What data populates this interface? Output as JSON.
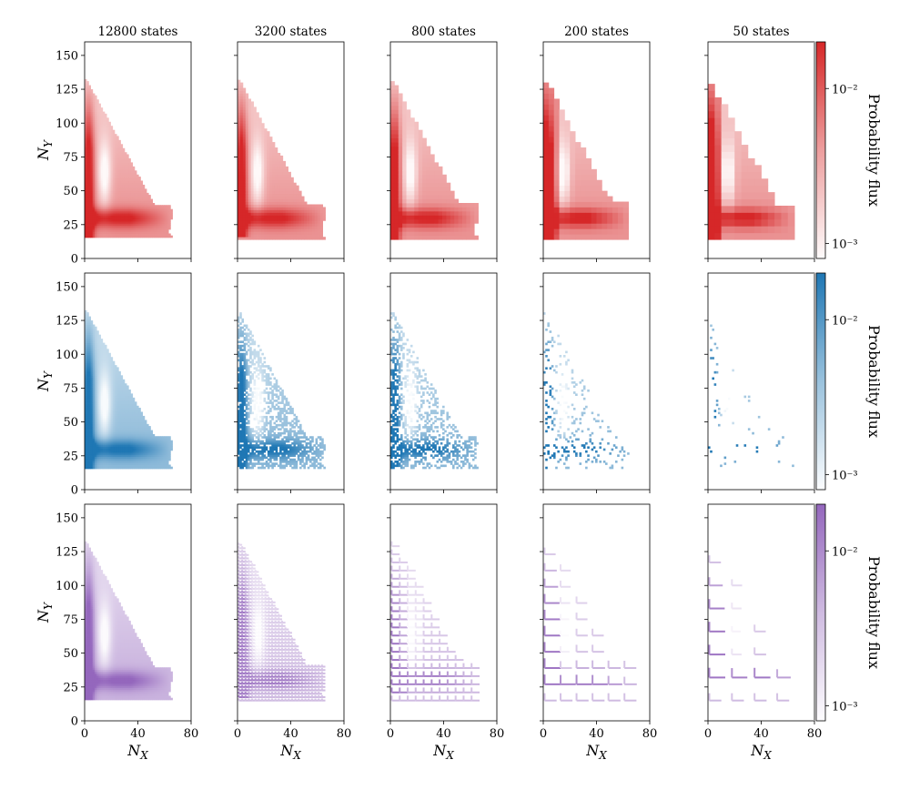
{
  "chart_data": {
    "type": "heatmap",
    "panel_titles": [
      "12800 states",
      "3200 states",
      "800 states",
      "200 states",
      "50 states"
    ],
    "xlabel": "N_X",
    "ylabel": "N_Y",
    "xlim": [
      0,
      80
    ],
    "ylim": [
      0,
      160
    ],
    "x_ticks": [
      0,
      40,
      80
    ],
    "y_ticks": [
      0,
      25,
      50,
      75,
      100,
      125,
      150
    ],
    "x_tick_labels": [
      "0",
      "40",
      "80"
    ],
    "y_tick_labels": [
      "0",
      "25",
      "50",
      "75",
      "100",
      "125",
      "150"
    ],
    "colorbar": {
      "label": "Probability flux",
      "scale": "log",
      "range": [
        0.0008,
        0.02
      ],
      "tick_labels": [
        "10⁻²",
        "10⁻³"
      ],
      "tick_values": [
        0.01,
        0.001
      ]
    },
    "rows": [
      {
        "color": "#d62728",
        "discretization": "adaptive blocks"
      },
      {
        "color": "#1f77b4",
        "discretization": "sparse sampled states"
      },
      {
        "color": "#9467bd",
        "discretization": "uniform grid"
      }
    ],
    "grid_steps": [
      1,
      4,
      8,
      16,
      32
    ],
    "support_region": {
      "description": "flux concentrated along left wall (N_X 0-6, N_Y 15-130) and lower ridge (N_Y 20-40), extending to N_X ~65 at N_Y ~35, with hollow interior near N_X 10-20, N_Y 40-90"
    }
  }
}
